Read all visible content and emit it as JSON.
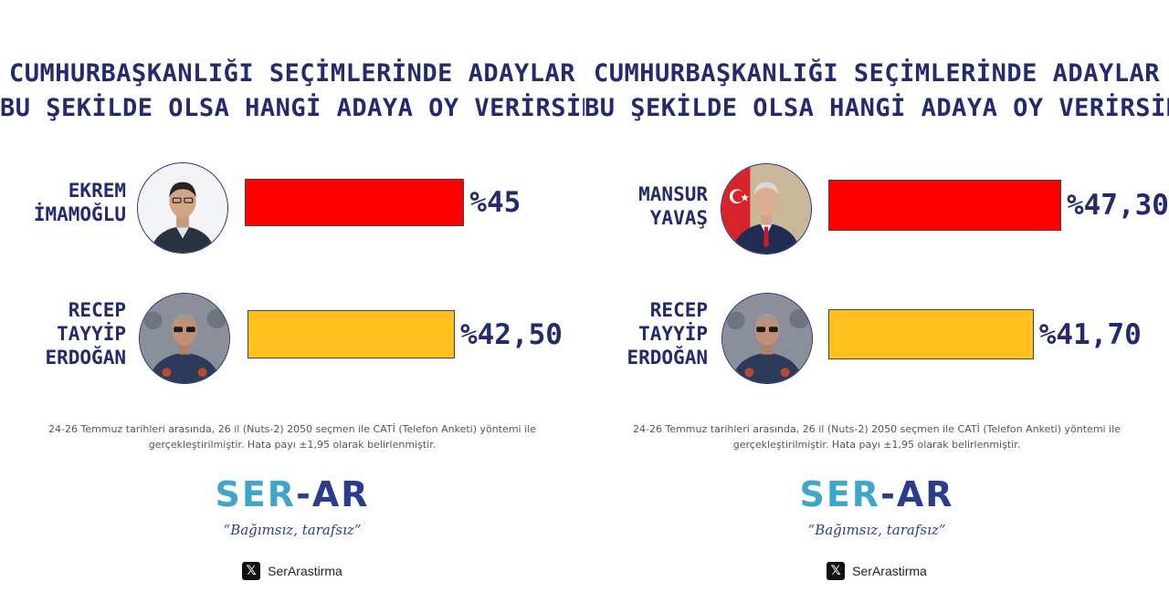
{
  "panels": [
    {
      "title_line1": "CUMHURBAŞKANLIĞI SEÇİMLERİNDE ADAYLAR",
      "title_line2": "BU ŞEKİLDE OLSA HANGİ ADAYA OY VERİRSİNİZ?",
      "candidates": [
        {
          "name_lines": [
            "EKREM",
            "İMAMOĞLU"
          ],
          "pct_label": "%45",
          "color": "#ff0000"
        },
        {
          "name_lines": [
            "RECEP",
            "TAYYİP",
            "ERDOĞAN"
          ],
          "pct_label": "%42,50",
          "color": "#ffbf1f"
        }
      ],
      "note_line1": "24-26 Temmuz tarihleri arasında, 26 il (Nuts-2) 2050 seçmen ile CATİ (Telefon Anketi) yöntemi ile",
      "note_line2": "gerçekleştirilmiştir. Hata payı ±1,95 olarak belirlenmiştir.",
      "logo_left": "SER",
      "logo_dash": "-",
      "logo_right": "AR",
      "tagline": "“Bağımsız, tarafsız”",
      "social_handle": "SerArastirma"
    },
    {
      "title_line1": "CUMHURBAŞKANLIĞI SEÇİMLERİNDE ADAYLAR",
      "title_line2": "BU ŞEKİLDE OLSA HANGİ ADAYA OY VERİRSİNİZ?",
      "candidates": [
        {
          "name_lines": [
            "MANSUR",
            "YAVAŞ"
          ],
          "pct_label": "%47,30",
          "color": "#ff0000"
        },
        {
          "name_lines": [
            "RECEP",
            "TAYYİP",
            "ERDOĞAN"
          ],
          "pct_label": "%41,70",
          "color": "#ffbf1f"
        }
      ],
      "note_line1": "24-26 Temmuz tarihleri arasında, 26 il (Nuts-2) 2050 seçmen ile CATİ (Telefon Anketi) yöntemi ile",
      "note_line2": "gerçekleştirilmiştir. Hata payı ±1,95 olarak belirlenmiştir.",
      "logo_left": "SER",
      "logo_dash": "-",
      "logo_right": "AR",
      "tagline": "“Bağımsız, tarafsız”",
      "social_handle": "SerArastirma"
    }
  ],
  "chart_data": [
    {
      "type": "bar",
      "orientation": "horizontal",
      "title": "CUMHURBAŞKANLIĞI SEÇİMLERİNDE ADAYLAR BU ŞEKİLDE OLSA HANGİ ADAYA OY VERİRSİNİZ?",
      "categories": [
        "EKREM İMAMOĞLU",
        "RECEP TAYYİP ERDOĞAN"
      ],
      "values": [
        45,
        42.5
      ],
      "colors": [
        "#ff0000",
        "#ffbf1f"
      ],
      "xlim": [
        0,
        100
      ],
      "grid": false
    },
    {
      "type": "bar",
      "orientation": "horizontal",
      "title": "CUMHURBAŞKANLIĞI SEÇİMLERİNDE ADAYLAR BU ŞEKİLDE OLSA HANGİ ADAYA OY VERİRSİNİZ?",
      "categories": [
        "MANSUR YAVAŞ",
        "RECEP TAYYİP ERDOĞAN"
      ],
      "values": [
        47.3,
        41.7
      ],
      "colors": [
        "#ff0000",
        "#ffbf1f"
      ],
      "xlim": [
        0,
        100
      ],
      "grid": false
    }
  ]
}
